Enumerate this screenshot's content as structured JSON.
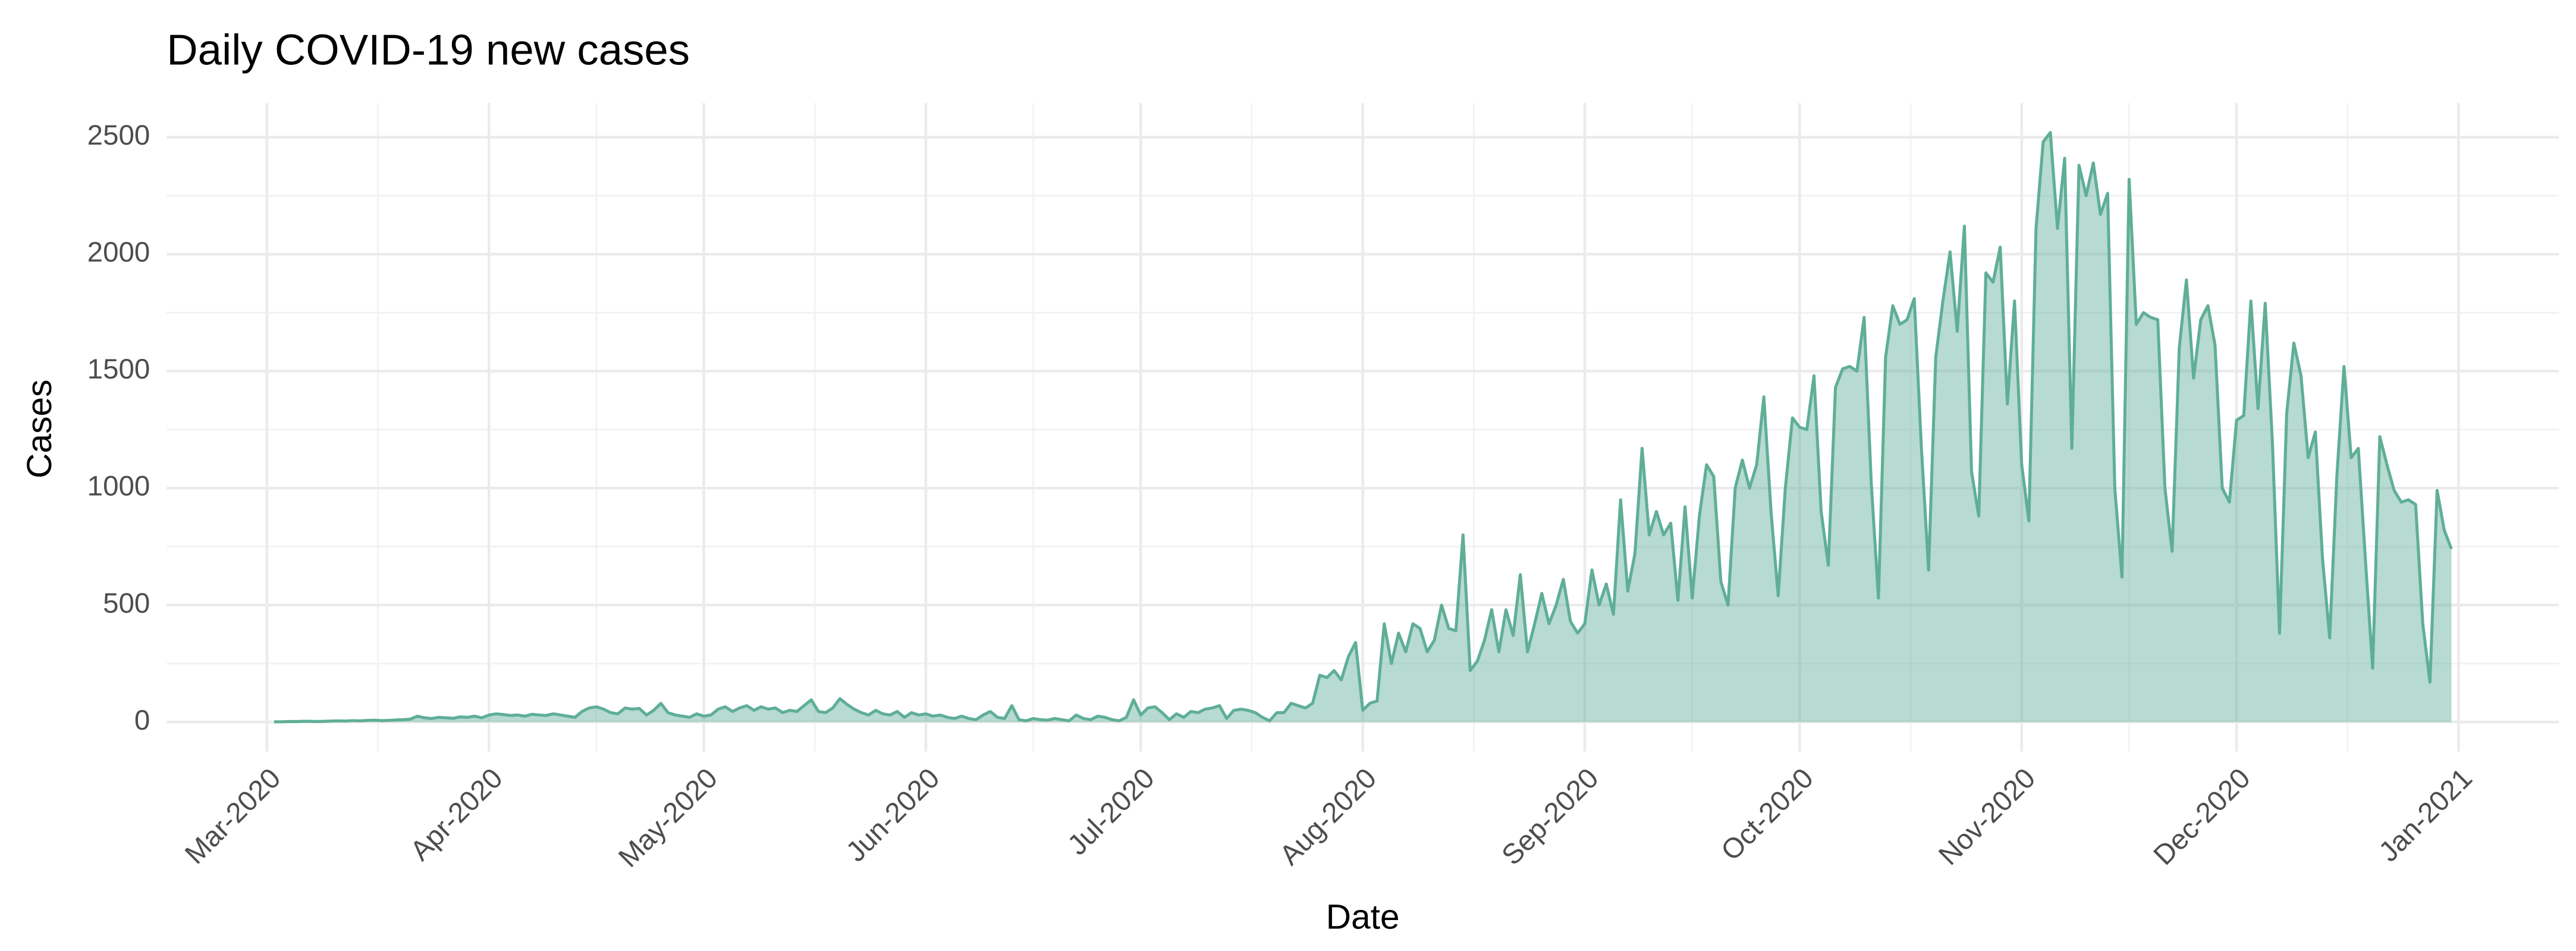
{
  "chart_data": {
    "type": "area",
    "title": "Daily COVID-19 new cases",
    "x_label": "Date",
    "y_label": "Cases",
    "color": "#5fae98",
    "grid": true,
    "xlim": [
      "2020-02-16",
      "2021-01-15"
    ],
    "xticks": [
      {
        "value": "2020-03-01",
        "label": "Mar-2020"
      },
      {
        "value": "2020-04-01",
        "label": "Apr-2020"
      },
      {
        "value": "2020-05-01",
        "label": "May-2020"
      },
      {
        "value": "2020-06-01",
        "label": "Jun-2020"
      },
      {
        "value": "2020-07-01",
        "label": "Jul-2020"
      },
      {
        "value": "2020-08-01",
        "label": "Aug-2020"
      },
      {
        "value": "2020-09-01",
        "label": "Sep-2020"
      },
      {
        "value": "2020-10-01",
        "label": "Oct-2020"
      },
      {
        "value": "2020-11-01",
        "label": "Nov-2020"
      },
      {
        "value": "2020-12-01",
        "label": "Dec-2020"
      },
      {
        "value": "2021-01-01",
        "label": "Jan-2021"
      }
    ],
    "ylim": [
      -126,
      2646
    ],
    "yticks": [
      0,
      500,
      1000,
      1500,
      2000,
      2500
    ],
    "x": [
      "2020-03-02",
      "2020-03-03",
      "2020-03-04",
      "2020-03-05",
      "2020-03-06",
      "2020-03-07",
      "2020-03-08",
      "2020-03-09",
      "2020-03-10",
      "2020-03-11",
      "2020-03-12",
      "2020-03-13",
      "2020-03-14",
      "2020-03-15",
      "2020-03-16",
      "2020-03-17",
      "2020-03-18",
      "2020-03-19",
      "2020-03-20",
      "2020-03-21",
      "2020-03-22",
      "2020-03-23",
      "2020-03-24",
      "2020-03-25",
      "2020-03-26",
      "2020-03-27",
      "2020-03-28",
      "2020-03-29",
      "2020-03-30",
      "2020-03-31",
      "2020-04-01",
      "2020-04-02",
      "2020-04-03",
      "2020-04-04",
      "2020-04-05",
      "2020-04-06",
      "2020-04-07",
      "2020-04-08",
      "2020-04-09",
      "2020-04-10",
      "2020-04-11",
      "2020-04-12",
      "2020-04-13",
      "2020-04-14",
      "2020-04-15",
      "2020-04-16",
      "2020-04-17",
      "2020-04-18",
      "2020-04-19",
      "2020-04-20",
      "2020-04-21",
      "2020-04-22",
      "2020-04-23",
      "2020-04-24",
      "2020-04-25",
      "2020-04-26",
      "2020-04-27",
      "2020-04-28",
      "2020-04-29",
      "2020-04-30",
      "2020-05-01",
      "2020-05-02",
      "2020-05-03",
      "2020-05-04",
      "2020-05-05",
      "2020-05-06",
      "2020-05-07",
      "2020-05-08",
      "2020-05-09",
      "2020-05-10",
      "2020-05-11",
      "2020-05-12",
      "2020-05-13",
      "2020-05-14",
      "2020-05-15",
      "2020-05-16",
      "2020-05-17",
      "2020-05-18",
      "2020-05-19",
      "2020-05-20",
      "2020-05-21",
      "2020-05-22",
      "2020-05-23",
      "2020-05-24",
      "2020-05-25",
      "2020-05-26",
      "2020-05-27",
      "2020-05-28",
      "2020-05-29",
      "2020-05-30",
      "2020-05-31",
      "2020-06-01",
      "2020-06-02",
      "2020-06-03",
      "2020-06-04",
      "2020-06-05",
      "2020-06-06",
      "2020-06-07",
      "2020-06-08",
      "2020-06-09",
      "2020-06-10",
      "2020-06-11",
      "2020-06-12",
      "2020-06-13",
      "2020-06-14",
      "2020-06-15",
      "2020-06-16",
      "2020-06-17",
      "2020-06-18",
      "2020-06-19",
      "2020-06-20",
      "2020-06-21",
      "2020-06-22",
      "2020-06-23",
      "2020-06-24",
      "2020-06-25",
      "2020-06-26",
      "2020-06-27",
      "2020-06-28",
      "2020-06-29",
      "2020-06-30",
      "2020-07-01",
      "2020-07-02",
      "2020-07-03",
      "2020-07-04",
      "2020-07-05",
      "2020-07-06",
      "2020-07-07",
      "2020-07-08",
      "2020-07-09",
      "2020-07-10",
      "2020-07-11",
      "2020-07-12",
      "2020-07-13",
      "2020-07-14",
      "2020-07-15",
      "2020-07-16",
      "2020-07-17",
      "2020-07-18",
      "2020-07-19",
      "2020-07-20",
      "2020-07-21",
      "2020-07-22",
      "2020-07-23",
      "2020-07-24",
      "2020-07-25",
      "2020-07-26",
      "2020-07-27",
      "2020-07-28",
      "2020-07-29",
      "2020-07-30",
      "2020-07-31",
      "2020-08-01",
      "2020-08-02",
      "2020-08-03",
      "2020-08-04",
      "2020-08-05",
      "2020-08-06",
      "2020-08-07",
      "2020-08-08",
      "2020-08-09",
      "2020-08-10",
      "2020-08-11",
      "2020-08-12",
      "2020-08-13",
      "2020-08-14",
      "2020-08-15",
      "2020-08-16",
      "2020-08-17",
      "2020-08-18",
      "2020-08-19",
      "2020-08-20",
      "2020-08-21",
      "2020-08-22",
      "2020-08-23",
      "2020-08-24",
      "2020-08-25",
      "2020-08-26",
      "2020-08-27",
      "2020-08-28",
      "2020-08-29",
      "2020-08-30",
      "2020-08-31",
      "2020-09-01",
      "2020-09-02",
      "2020-09-03",
      "2020-09-04",
      "2020-09-05",
      "2020-09-06",
      "2020-09-07",
      "2020-09-08",
      "2020-09-09",
      "2020-09-10",
      "2020-09-11",
      "2020-09-12",
      "2020-09-13",
      "2020-09-14",
      "2020-09-15",
      "2020-09-16",
      "2020-09-17",
      "2020-09-18",
      "2020-09-19",
      "2020-09-20",
      "2020-09-21",
      "2020-09-22",
      "2020-09-23",
      "2020-09-24",
      "2020-09-25",
      "2020-09-26",
      "2020-09-27",
      "2020-09-28",
      "2020-09-29",
      "2020-09-30",
      "2020-10-01",
      "2020-10-02",
      "2020-10-03",
      "2020-10-04",
      "2020-10-05",
      "2020-10-06",
      "2020-10-07",
      "2020-10-08",
      "2020-10-09",
      "2020-10-10",
      "2020-10-11",
      "2020-10-12",
      "2020-10-13",
      "2020-10-14",
      "2020-10-15",
      "2020-10-16",
      "2020-10-17",
      "2020-10-18",
      "2020-10-19",
      "2020-10-20",
      "2020-10-21",
      "2020-10-22",
      "2020-10-23",
      "2020-10-24",
      "2020-10-25",
      "2020-10-26",
      "2020-10-27",
      "2020-10-28",
      "2020-10-29",
      "2020-10-30",
      "2020-10-31",
      "2020-11-01",
      "2020-11-02",
      "2020-11-03",
      "2020-11-04",
      "2020-11-05",
      "2020-11-06",
      "2020-11-07",
      "2020-11-08",
      "2020-11-09",
      "2020-11-10",
      "2020-11-11",
      "2020-11-12",
      "2020-11-13",
      "2020-11-14",
      "2020-11-15",
      "2020-11-16",
      "2020-11-17",
      "2020-11-18",
      "2020-11-19",
      "2020-11-20",
      "2020-11-21",
      "2020-11-22",
      "2020-11-23",
      "2020-11-24",
      "2020-11-25",
      "2020-11-26",
      "2020-11-27",
      "2020-11-28",
      "2020-11-29",
      "2020-11-30",
      "2020-12-01",
      "2020-12-02",
      "2020-12-03",
      "2020-12-04",
      "2020-12-05",
      "2020-12-06",
      "2020-12-07",
      "2020-12-08",
      "2020-12-09",
      "2020-12-10",
      "2020-12-11",
      "2020-12-12",
      "2020-12-13",
      "2020-12-14",
      "2020-12-15",
      "2020-12-16",
      "2020-12-17",
      "2020-12-18",
      "2020-12-19",
      "2020-12-20",
      "2020-12-21",
      "2020-12-22",
      "2020-12-23",
      "2020-12-24",
      "2020-12-25",
      "2020-12-26",
      "2020-12-27",
      "2020-12-28",
      "2020-12-29",
      "2020-12-30",
      "2020-12-31"
    ],
    "values": [
      1,
      1,
      2,
      2,
      3,
      3,
      2,
      3,
      4,
      5,
      4,
      6,
      5,
      7,
      8,
      6,
      7,
      9,
      10,
      12,
      25,
      18,
      15,
      20,
      18,
      16,
      22,
      20,
      25,
      18,
      30,
      35,
      32,
      28,
      30,
      25,
      33,
      30,
      28,
      35,
      30,
      25,
      20,
      45,
      60,
      65,
      55,
      40,
      35,
      60,
      55,
      58,
      30,
      50,
      80,
      40,
      30,
      25,
      20,
      35,
      25,
      30,
      55,
      65,
      45,
      60,
      70,
      50,
      65,
      55,
      60,
      40,
      50,
      45,
      70,
      95,
      45,
      40,
      60,
      100,
      75,
      55,
      40,
      30,
      50,
      35,
      30,
      45,
      20,
      40,
      30,
      35,
      25,
      30,
      20,
      15,
      25,
      15,
      10,
      30,
      45,
      20,
      15,
      70,
      10,
      5,
      15,
      10,
      8,
      15,
      10,
      5,
      30,
      15,
      10,
      25,
      20,
      10,
      5,
      20,
      95,
      30,
      60,
      65,
      40,
      10,
      35,
      20,
      45,
      40,
      55,
      60,
      70,
      15,
      50,
      55,
      50,
      40,
      20,
      5,
      40,
      40,
      80,
      70,
      60,
      80,
      200,
      190,
      220,
      180,
      280,
      340,
      50,
      80,
      90,
      420,
      250,
      380,
      300,
      420,
      400,
      300,
      350,
      500,
      400,
      390,
      800,
      220,
      260,
      350,
      480,
      300,
      480,
      370,
      630,
      300,
      420,
      550,
      420,
      500,
      610,
      430,
      380,
      420,
      650,
      500,
      590,
      460,
      950,
      560,
      720,
      1170,
      800,
      900,
      800,
      850,
      520,
      920,
      530,
      880,
      1100,
      1050,
      600,
      500,
      1000,
      1120,
      1000,
      1100,
      1390,
      900,
      540,
      1000,
      1300,
      1260,
      1250,
      1480,
      900,
      670,
      1430,
      1510,
      1520,
      1500,
      1730,
      1020,
      530,
      1560,
      1780,
      1700,
      1720,
      1810,
      1170,
      650,
      1560,
      1800,
      2010,
      1670,
      2120,
      1070,
      880,
      1920,
      1880,
      2030,
      1360,
      1800,
      1100,
      860,
      2110,
      2480,
      2520,
      2110,
      2410,
      1170,
      2380,
      2250,
      2390,
      2170,
      2260,
      1000,
      620,
      2320,
      1700,
      1750,
      1730,
      1720,
      1000,
      730,
      1600,
      1890,
      1470,
      1720,
      1780,
      1610,
      1000,
      940,
      1290,
      1310,
      1800,
      1340,
      1790,
      1200,
      380,
      1320,
      1620,
      1480,
      1130,
      1240,
      700,
      360,
      1050,
      1520,
      1130,
      1170,
      690,
      230,
      1220,
      1100,
      990,
      940,
      950,
      930,
      420,
      170,
      990,
      820,
      740
    ]
  }
}
